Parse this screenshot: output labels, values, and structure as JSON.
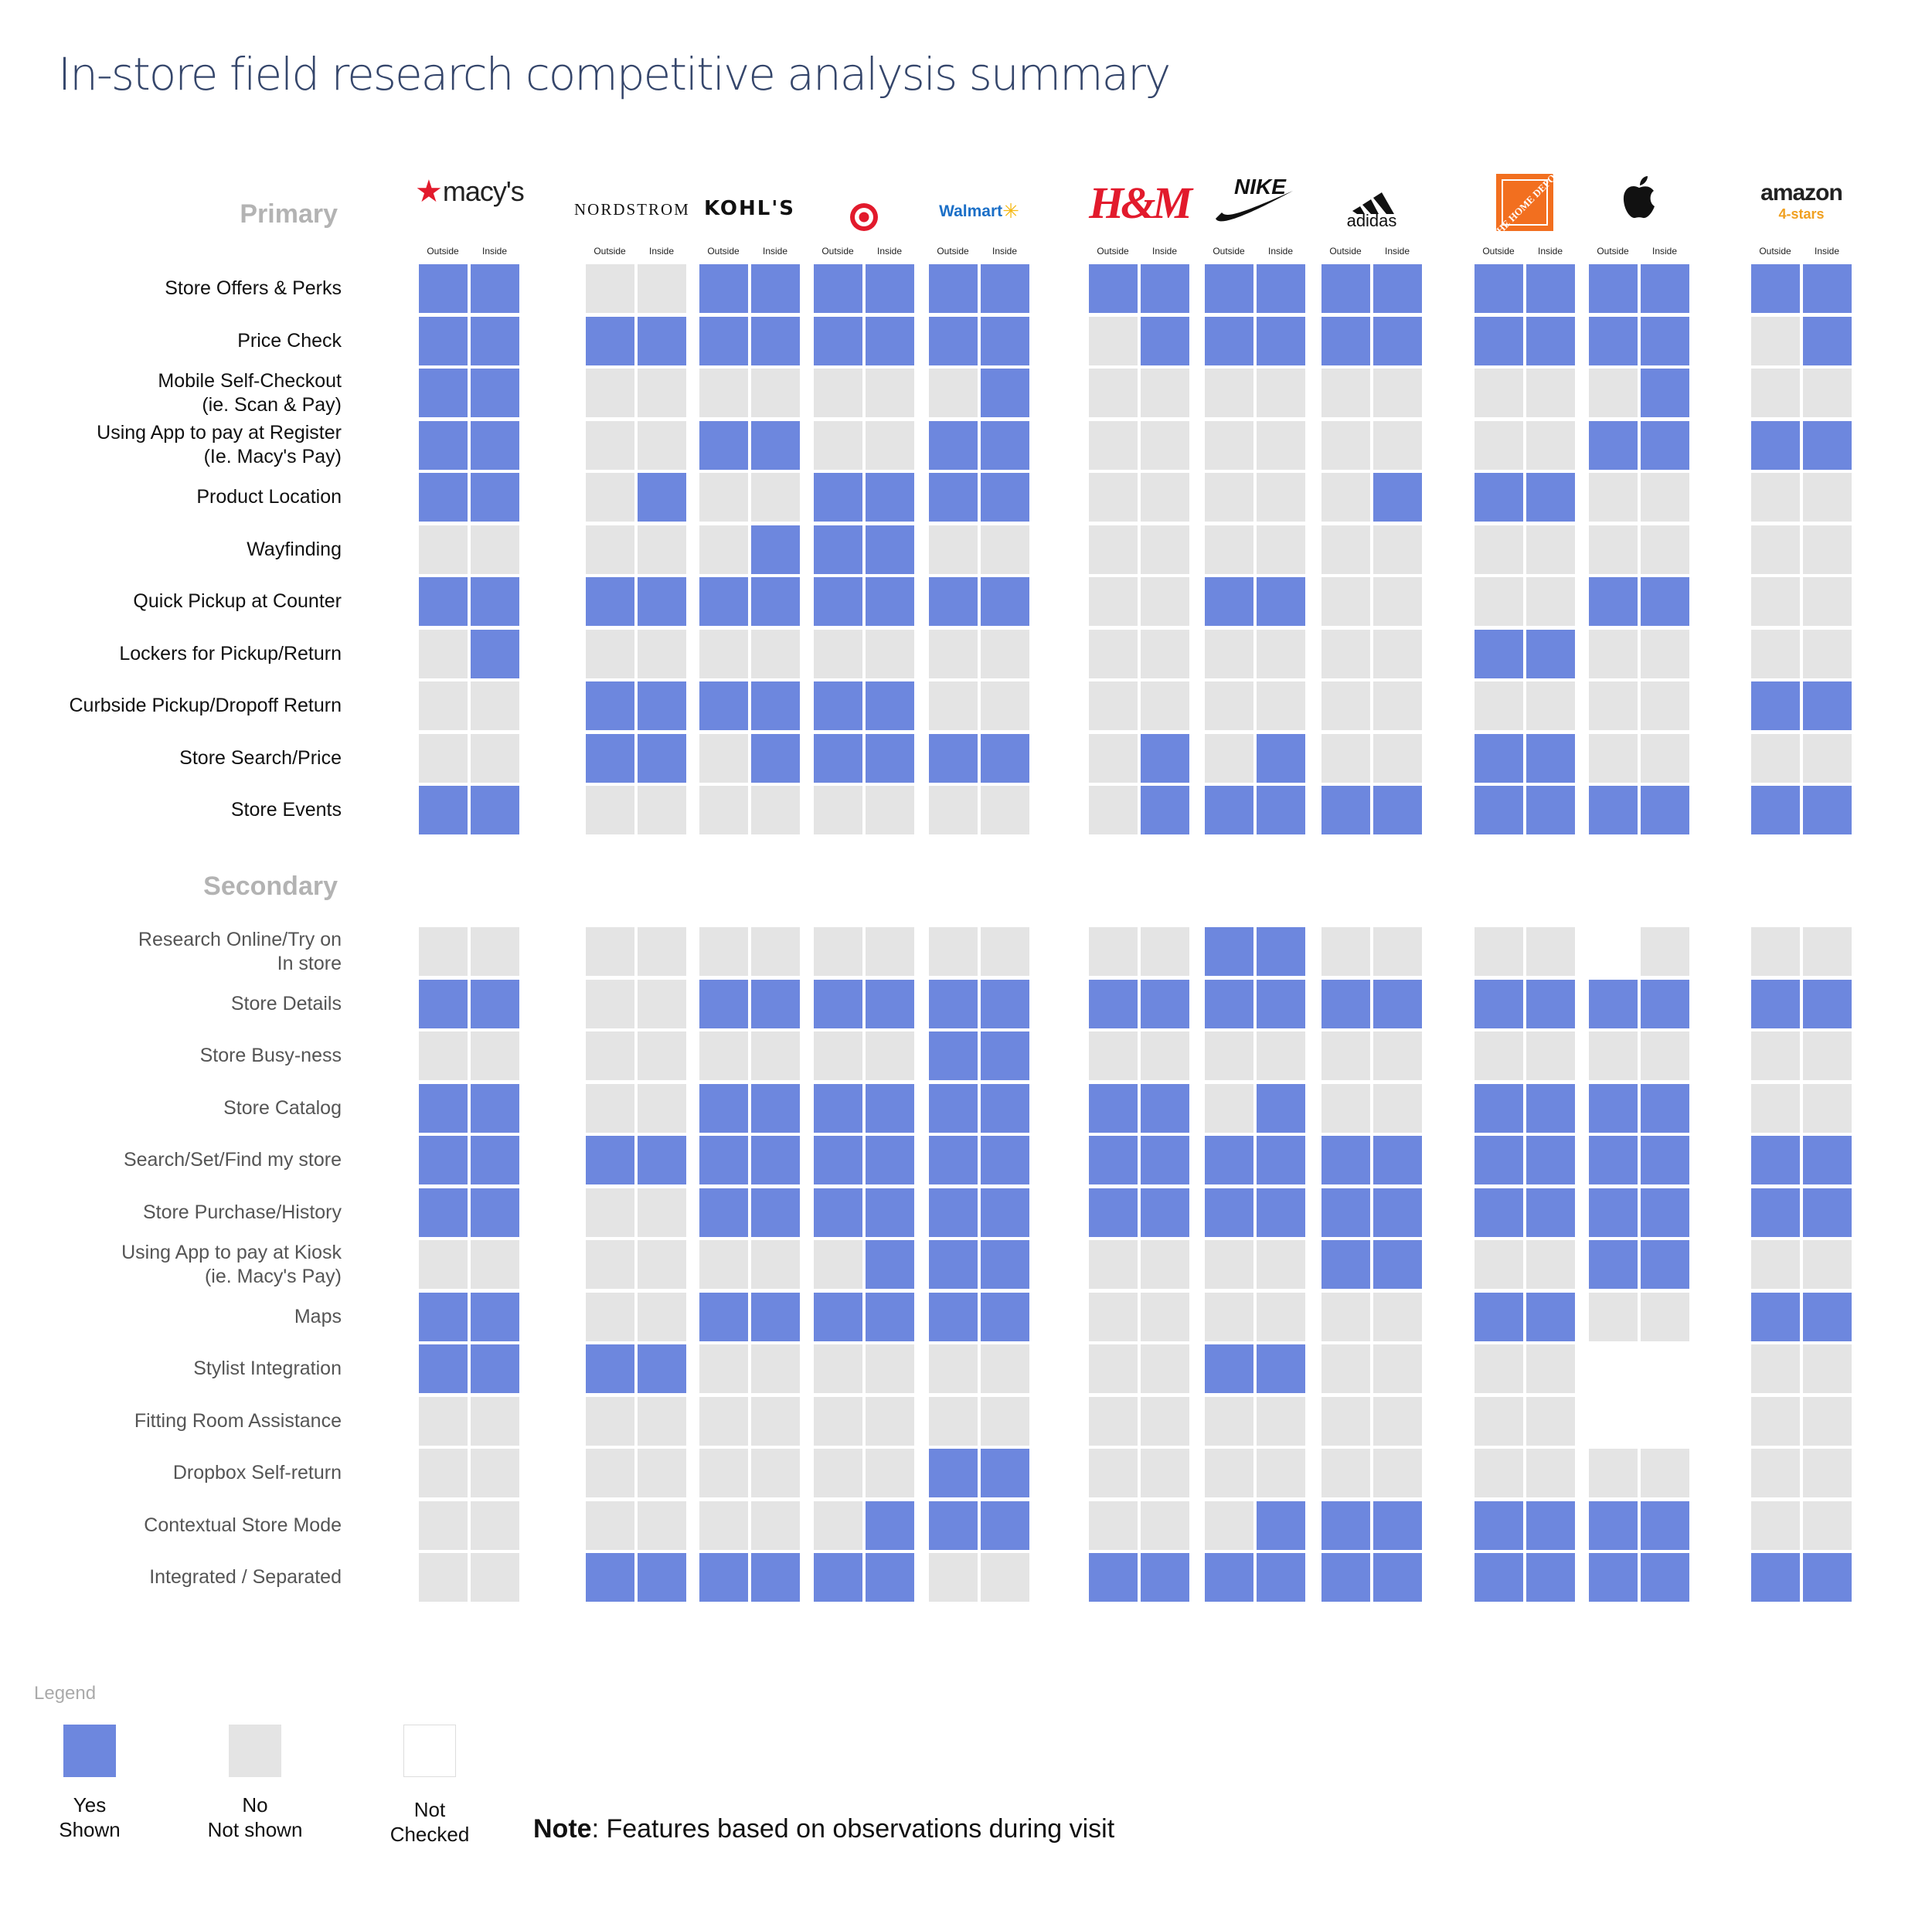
{
  "title": "In-store field research competitive analysis summary",
  "column_labels": {
    "outside": "Outside",
    "inside": "Inside"
  },
  "brands": [
    {
      "name": "macy's",
      "logo_text": "macy's",
      "logo_icon": "star-icon"
    },
    {
      "name": "Nordstrom",
      "logo_text": "NORDSTROM"
    },
    {
      "name": "Kohl's",
      "logo_text": "KOHL'S"
    },
    {
      "name": "Target",
      "logo_icon": "target-bullseye-icon"
    },
    {
      "name": "Walmart",
      "logo_text": "Walmart",
      "logo_icon": "spark-icon"
    },
    {
      "name": "H&M",
      "logo_text": "H&M"
    },
    {
      "name": "Nike",
      "logo_text": "NIKE",
      "logo_icon": "swoosh-icon"
    },
    {
      "name": "adidas",
      "logo_text": "adidas",
      "logo_icon": "three-stripes-icon"
    },
    {
      "name": "The Home Depot",
      "logo_text": "THE HOME DEPOT"
    },
    {
      "name": "Apple",
      "logo_icon": "apple-icon"
    },
    {
      "name": "amazon",
      "logo_text": "amazon",
      "sub_text": "4-stars"
    }
  ],
  "sections": [
    {
      "label": "Primary",
      "rows": [
        {
          "label": "Store Offers & Perks",
          "values": [
            "YY",
            "NN",
            "YY",
            "YY",
            "YY",
            "YY",
            "YY",
            "YY",
            "YY",
            "YY",
            "YY"
          ]
        },
        {
          "label": "Price Check",
          "values": [
            "YY",
            "YY",
            "YY",
            "YY",
            "YY",
            "NY",
            "YY",
            "YY",
            "YY",
            "YY",
            "NY"
          ]
        },
        {
          "label": "Mobile Self-Checkout\n(ie. Scan & Pay)",
          "values": [
            "YY",
            "NN",
            "NN",
            "NN",
            "NY",
            "NN",
            "NN",
            "NN",
            "NN",
            "NY",
            "NN"
          ]
        },
        {
          "label": "Using App to pay at Register\n(Ie. Macy's Pay)",
          "values": [
            "YY",
            "NN",
            "YY",
            "NN",
            "YY",
            "NN",
            "NN",
            "NN",
            "NN",
            "YY",
            "YY"
          ]
        },
        {
          "label": "Product Location",
          "values": [
            "YY",
            "NY",
            "NN",
            "YY",
            "YY",
            "NN",
            "NN",
            "NY",
            "YY",
            "NN",
            "NN"
          ]
        },
        {
          "label": "Wayfinding",
          "values": [
            "NN",
            "NN",
            "NY",
            "YY",
            "NN",
            "NN",
            "NN",
            "NN",
            "NN",
            "NN",
            "NN"
          ]
        },
        {
          "label": "Quick Pickup at Counter",
          "values": [
            "YY",
            "YY",
            "YY",
            "YY",
            "YY",
            "NN",
            "YY",
            "NN",
            "NN",
            "YY",
            "NN"
          ]
        },
        {
          "label": "Lockers for Pickup/Return",
          "values": [
            "NY",
            "NN",
            "NN",
            "NN",
            "NN",
            "NN",
            "NN",
            "NN",
            "YY",
            "NN",
            "NN"
          ]
        },
        {
          "label": "Curbside Pickup/Dropoff Return",
          "values": [
            "NN",
            "YY",
            "YY",
            "YY",
            "NN",
            "NN",
            "NN",
            "NN",
            "NN",
            "NN",
            "YY"
          ]
        },
        {
          "label": "Store Search/Price",
          "values": [
            "NN",
            "YY",
            "NY",
            "YY",
            "YY",
            "NY",
            "NY",
            "NN",
            "YY",
            "NN",
            "NN"
          ]
        },
        {
          "label": "Store Events",
          "values": [
            "YY",
            "NN",
            "NN",
            "NN",
            "NN",
            "NY",
            "YY",
            "YY",
            "YY",
            "YY",
            "YY"
          ]
        }
      ]
    },
    {
      "label": "Secondary",
      "rows": [
        {
          "label": "Research Online/Try on\nIn store",
          "values": [
            "NN",
            "NN",
            "NN",
            "NN",
            "NN",
            "NN",
            "YY",
            "NN",
            "NN",
            "XN",
            "NN"
          ]
        },
        {
          "label": "Store Details",
          "values": [
            "YY",
            "NN",
            "YY",
            "YY",
            "YY",
            "YY",
            "YY",
            "YY",
            "YY",
            "YY",
            "YY"
          ]
        },
        {
          "label": "Store Busy-ness",
          "values": [
            "NN",
            "NN",
            "NN",
            "NN",
            "YY",
            "NN",
            "NN",
            "NN",
            "NN",
            "NN",
            "NN"
          ]
        },
        {
          "label": "Store Catalog",
          "values": [
            "YY",
            "NN",
            "YY",
            "YY",
            "YY",
            "YY",
            "NY",
            "NN",
            "YY",
            "YY",
            "NN"
          ]
        },
        {
          "label": "Search/Set/Find my store",
          "values": [
            "YY",
            "YY",
            "YY",
            "YY",
            "YY",
            "YY",
            "YY",
            "YY",
            "YY",
            "YY",
            "YY"
          ]
        },
        {
          "label": "Store Purchase/History",
          "values": [
            "YY",
            "NN",
            "YY",
            "YY",
            "YY",
            "YY",
            "YY",
            "YY",
            "YY",
            "YY",
            "YY"
          ]
        },
        {
          "label": "Using App to pay at Kiosk\n(ie. Macy's Pay)",
          "values": [
            "NN",
            "NN",
            "NN",
            "NY",
            "YY",
            "NN",
            "NN",
            "YY",
            "NN",
            "YY",
            "NN"
          ]
        },
        {
          "label": "Maps",
          "values": [
            "YY",
            "NN",
            "YY",
            "YY",
            "YY",
            "NN",
            "NN",
            "NN",
            "YY",
            "NN",
            "YY"
          ]
        },
        {
          "label": "Stylist Integration",
          "values": [
            "YY",
            "YY",
            "NN",
            "NN",
            "NN",
            "NN",
            "YY",
            "NN",
            "NN",
            "XX",
            "NN"
          ]
        },
        {
          "label": "Fitting Room Assistance",
          "values": [
            "NN",
            "NN",
            "NN",
            "NN",
            "NN",
            "NN",
            "NN",
            "NN",
            "NN",
            "XX",
            "NN"
          ]
        },
        {
          "label": "Dropbox Self-return",
          "values": [
            "NN",
            "NN",
            "NN",
            "NN",
            "YY",
            "NN",
            "NN",
            "NN",
            "NN",
            "NN",
            "NN"
          ]
        },
        {
          "label": "Contextual Store Mode",
          "values": [
            "NN",
            "NN",
            "NN",
            "NY",
            "YY",
            "NN",
            "NY",
            "YY",
            "YY",
            "YY",
            "NN"
          ]
        },
        {
          "label": "Integrated / Separated",
          "values": [
            "NN",
            "YY",
            "YY",
            "YY",
            "NN",
            "YY",
            "YY",
            "YY",
            "YY",
            "YY",
            "YY"
          ]
        }
      ]
    }
  ],
  "legend": {
    "title": "Legend",
    "items": [
      {
        "key": "yes",
        "label": "Yes\nShown",
        "color": "#6d87de"
      },
      {
        "key": "no",
        "label": "No\nNot shown",
        "color": "#e4e4e4"
      },
      {
        "key": "not_checked",
        "label": "Not\nChecked",
        "color": "#ffffff"
      }
    ]
  },
  "note": {
    "bold": "Note",
    "text": ": Features based on observations during visit"
  },
  "colors": {
    "yes": "#6d87de",
    "no": "#e4e4e4",
    "title": "#35466b",
    "section": "#b3b3b3"
  }
}
